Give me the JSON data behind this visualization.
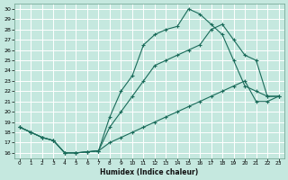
{
  "bg_color": "#c5e8df",
  "grid_color": "#b0d8ce",
  "line_color": "#1a6b5a",
  "xlabel": "Humidex (Indice chaleur)",
  "xlim": [
    -0.5,
    23.5
  ],
  "ylim": [
    15.5,
    30.5
  ],
  "xticks": [
    0,
    1,
    2,
    3,
    4,
    5,
    6,
    7,
    8,
    9,
    10,
    11,
    12,
    13,
    14,
    15,
    16,
    17,
    18,
    19,
    20,
    21,
    22,
    23
  ],
  "yticks": [
    16,
    17,
    18,
    19,
    20,
    21,
    22,
    23,
    24,
    25,
    26,
    27,
    28,
    29,
    30
  ],
  "line1_x": [
    0,
    1,
    2,
    3,
    4,
    5,
    6,
    7,
    8,
    9,
    10,
    11,
    12,
    13,
    14,
    15,
    16,
    17,
    18,
    19,
    20,
    21,
    22,
    23
  ],
  "line1_y": [
    18.5,
    18.0,
    17.5,
    17.2,
    16.0,
    16.0,
    16.1,
    16.2,
    17.0,
    17.5,
    18.0,
    18.5,
    19.0,
    19.5,
    20.0,
    20.5,
    21.0,
    21.5,
    22.0,
    22.5,
    23.0,
    21.0,
    21.0,
    21.5
  ],
  "line2_x": [
    0,
    1,
    2,
    3,
    4,
    5,
    6,
    7,
    8,
    9,
    10,
    11,
    12,
    13,
    14,
    15,
    16,
    17,
    18,
    19,
    20,
    21,
    22,
    23
  ],
  "line2_y": [
    18.5,
    18.0,
    17.5,
    17.2,
    16.0,
    16.0,
    16.1,
    16.2,
    19.5,
    22.0,
    23.5,
    26.5,
    27.5,
    28.0,
    28.3,
    30.0,
    29.5,
    28.5,
    27.5,
    25.0,
    22.5,
    22.0,
    21.5,
    21.5
  ],
  "line3_x": [
    0,
    1,
    2,
    3,
    4,
    5,
    6,
    7,
    8,
    9,
    10,
    11,
    12,
    13,
    14,
    15,
    16,
    17,
    18,
    19,
    20,
    21,
    22,
    23
  ],
  "line3_y": [
    18.5,
    18.0,
    17.5,
    17.2,
    16.0,
    16.0,
    16.1,
    16.2,
    18.5,
    20.0,
    21.5,
    23.0,
    24.5,
    25.0,
    25.5,
    26.0,
    26.5,
    28.0,
    28.5,
    27.0,
    25.5,
    25.0,
    21.5,
    21.5
  ]
}
